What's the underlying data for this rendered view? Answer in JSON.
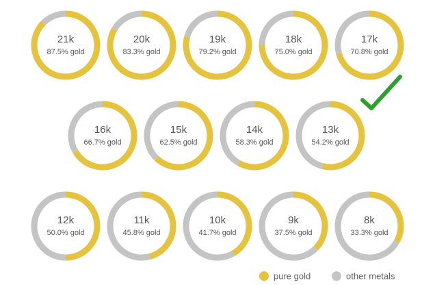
{
  "chart_data": {
    "type": "pie",
    "categories": [
      "21k",
      "20k",
      "19k",
      "18k",
      "17k",
      "16k",
      "15k",
      "14k",
      "13k",
      "12k",
      "11k",
      "10k",
      "9k",
      "8k"
    ],
    "series": [
      {
        "name": "pure gold",
        "color": "#e5c33f",
        "values": [
          87.5,
          83.3,
          79.2,
          75.0,
          70.8,
          66.7,
          62.5,
          58.3,
          54.2,
          50.0,
          45.8,
          41.7,
          37.5,
          33.3
        ],
        "value_labels": [
          "87.5% gold",
          "83.3% gold",
          "79.2% gold",
          "75.0% gold",
          "70.8% gold",
          "66.7% gold",
          "62.5% gold",
          "58.3% gold",
          "54.2% gold",
          "50.0% gold",
          "45.8% gold",
          "41.7% gold",
          "37.5% gold",
          "33.3% gold"
        ]
      },
      {
        "name": "other metals",
        "color": "#c4c4c4",
        "values": [
          12.5,
          16.7,
          20.8,
          25.0,
          29.2,
          33.3,
          37.5,
          41.7,
          45.8,
          50.0,
          54.2,
          58.3,
          62.5,
          66.7
        ]
      }
    ]
  }
}
